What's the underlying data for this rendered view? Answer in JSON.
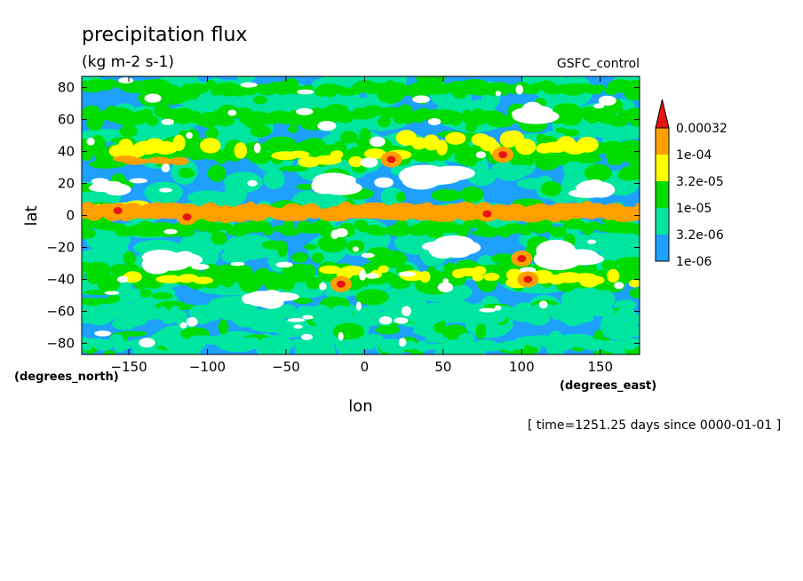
{
  "chart_data": {
    "type": "heatmap",
    "title": "precipitation flux",
    "units": "(kg m-2 s-1)",
    "experiment": "GSFC_control",
    "xlabel": "lon",
    "ylabel": "lat",
    "x_units": "(degrees_east)",
    "y_units": "(degrees_north)",
    "time_label": "[ time=1251.25 days since 0000-01-01 ]",
    "xlim": [
      -180,
      175
    ],
    "ylim": [
      -87,
      87
    ],
    "x_ticks": [
      -150,
      -100,
      -50,
      0,
      50,
      100,
      150
    ],
    "x_tick_labels": [
      "−150",
      "−100",
      "−50",
      "0",
      "50",
      "100",
      "150"
    ],
    "y_ticks": [
      80,
      60,
      40,
      20,
      0,
      -20,
      -40,
      -60,
      -80
    ],
    "y_tick_labels": [
      "80",
      "60",
      "40",
      "20",
      "0",
      "−20",
      "−40",
      "−60",
      "−80"
    ],
    "levels": [
      "1e-06",
      "3.2e-06",
      "1e-05",
      "3.2e-05",
      "1e-04",
      "0.00032"
    ],
    "level_colors": [
      "#ffffff",
      "#1ea0ff",
      "#00e6a0",
      "#00dc00",
      "#ffff00",
      "#ffa000",
      "#e61414"
    ],
    "features": [
      {
        "lon": [
          -180,
          175
        ],
        "lat": 2,
        "width": 7,
        "level": 5
      },
      {
        "lon": [
          -175,
          -110
        ],
        "lat": 5,
        "width": 5,
        "level": 4
      },
      {
        "lon": [
          -180,
          175
        ],
        "lat": -8,
        "width": 6,
        "level": 3
      },
      {
        "lon": [
          -180,
          175
        ],
        "lat": 40,
        "width": 10,
        "level": 3
      },
      {
        "lon": [
          -170,
          -80
        ],
        "lat": 42,
        "width": 8,
        "level": 4
      },
      {
        "lon": [
          -150,
          -120
        ],
        "lat": 35,
        "width": 4,
        "level": 5
      },
      {
        "lon": [
          -60,
          20
        ],
        "lat": 36,
        "width": 6,
        "level": 4
      },
      {
        "lon": [
          20,
          140
        ],
        "lat": 45,
        "width": 8,
        "level": 4
      },
      {
        "lon": [
          -180,
          175
        ],
        "lat": -38,
        "width": 10,
        "level": 3
      },
      {
        "lon": [
          -150,
          -100
        ],
        "lat": -40,
        "width": 6,
        "level": 4
      },
      {
        "lon": [
          -20,
          80
        ],
        "lat": -36,
        "width": 6,
        "level": 4
      },
      {
        "lon": [
          90,
          170
        ],
        "lat": -40,
        "width": 7,
        "level": 4
      },
      {
        "lon": [
          -180,
          175
        ],
        "lat": 62,
        "width": 8,
        "level": 3
      },
      {
        "lon": [
          -180,
          175
        ],
        "lat": -62,
        "width": 8,
        "level": 2
      },
      {
        "lon": [
          -180,
          175
        ],
        "lat": -80,
        "width": 6,
        "level": 2
      },
      {
        "lon": [
          -180,
          175
        ],
        "lat": 80,
        "width": 6,
        "level": 3
      }
    ],
    "maxima": [
      {
        "lon": 17,
        "lat": 35,
        "level": 6
      },
      {
        "lon": 88,
        "lat": 38,
        "level": 6
      },
      {
        "lon": 78,
        "lat": 1,
        "level": 6
      },
      {
        "lon": -113,
        "lat": -1,
        "level": 6
      },
      {
        "lon": -15,
        "lat": -43,
        "level": 6
      },
      {
        "lon": 104,
        "lat": -40,
        "level": 6
      },
      {
        "lon": 100,
        "lat": -27,
        "level": 6
      },
      {
        "lon": -157,
        "lat": 3,
        "level": 6
      }
    ],
    "dry_regions": [
      {
        "lon": -125,
        "lat": -28,
        "rlon": 20,
        "rlat": 7
      },
      {
        "lon": 130,
        "lat": -24,
        "rlon": 22,
        "rlat": 8
      },
      {
        "lon": 45,
        "lat": 22,
        "rlon": 22,
        "rlat": 9
      },
      {
        "lon": -20,
        "lat": 20,
        "rlon": 15,
        "rlat": 6
      },
      {
        "lon": 145,
        "lat": 15,
        "rlon": 14,
        "rlat": 6
      },
      {
        "lon": -160,
        "lat": 18,
        "rlon": 12,
        "rlat": 5
      },
      {
        "lon": 55,
        "lat": -20,
        "rlon": 18,
        "rlat": 6
      },
      {
        "lon": -60,
        "lat": -52,
        "rlon": 15,
        "rlat": 6
      },
      {
        "lon": 100,
        "lat": 62,
        "rlon": 18,
        "rlat": 7
      }
    ]
  }
}
